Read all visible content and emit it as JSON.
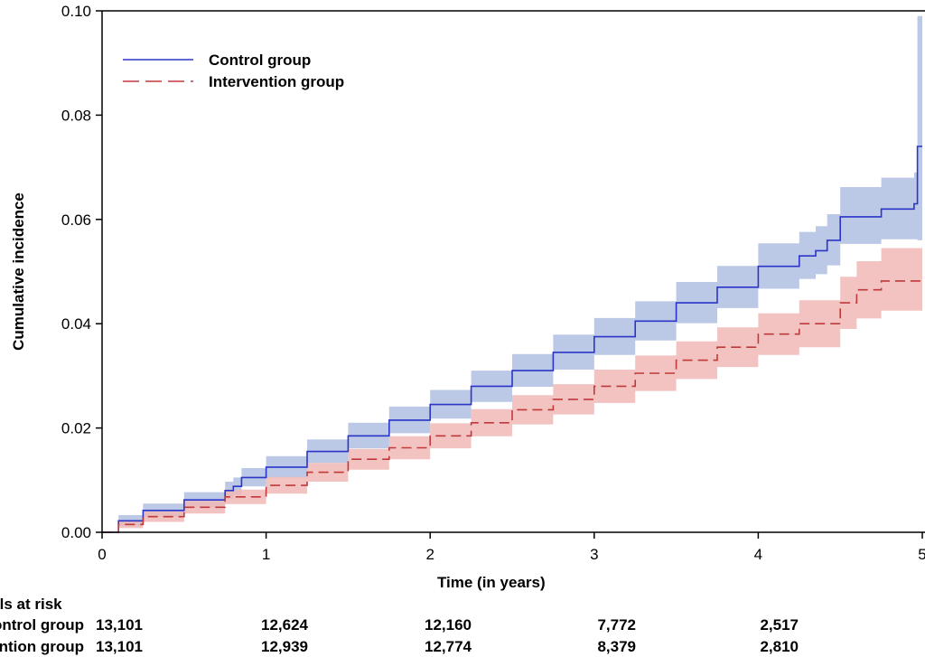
{
  "chart_data": {
    "type": "line",
    "xlabel": "Time (in years)",
    "ylabel": "Cumulative incidence",
    "xlim": [
      0,
      5
    ],
    "ylim": [
      0,
      0.1
    ],
    "x_ticks": [
      "0",
      "1",
      "2",
      "3",
      "4",
      "5"
    ],
    "y_ticks": [
      "0.00",
      "0.02",
      "0.04",
      "0.06",
      "0.08",
      "0.10"
    ],
    "legend_position": "top-left",
    "series": [
      {
        "name": "Control group",
        "color": "#2b35c8",
        "band_color": "#b4c2e3",
        "line_style": "solid",
        "x": [
          0,
          0.1,
          0.25,
          0.5,
          0.75,
          0.8,
          0.85,
          1.0,
          1.25,
          1.5,
          1.75,
          2.0,
          2.25,
          2.5,
          2.75,
          3.0,
          3.25,
          3.5,
          3.75,
          4.0,
          4.25,
          4.35,
          4.42,
          4.5,
          4.75,
          4.95,
          4.97,
          5.0
        ],
        "values": [
          0,
          0.0022,
          0.0042,
          0.0062,
          0.008,
          0.0088,
          0.0105,
          0.0125,
          0.0155,
          0.0185,
          0.0215,
          0.0245,
          0.028,
          0.031,
          0.0345,
          0.0375,
          0.0405,
          0.044,
          0.047,
          0.051,
          0.053,
          0.054,
          0.056,
          0.0605,
          0.062,
          0.063,
          0.074,
          0.074
        ],
        "lower": [
          0,
          0.0012,
          0.003,
          0.0048,
          0.0064,
          0.0072,
          0.0088,
          0.0105,
          0.0133,
          0.0161,
          0.019,
          0.0218,
          0.025,
          0.0279,
          0.0312,
          0.034,
          0.0368,
          0.0401,
          0.043,
          0.0467,
          0.0486,
          0.0495,
          0.0512,
          0.0553,
          0.0562,
          0.0562,
          0.056,
          0.056
        ],
        "upper": [
          0,
          0.0033,
          0.0055,
          0.0077,
          0.0097,
          0.0105,
          0.0123,
          0.0146,
          0.0178,
          0.021,
          0.0241,
          0.0273,
          0.031,
          0.0342,
          0.0379,
          0.0411,
          0.0443,
          0.048,
          0.0511,
          0.0554,
          0.0576,
          0.0587,
          0.061,
          0.0662,
          0.068,
          0.069,
          0.099,
          0.099
        ]
      },
      {
        "name": "Intervention group",
        "color": "#c0393b",
        "band_color": "#f0b8b5",
        "line_style": "dashed",
        "x": [
          0,
          0.1,
          0.25,
          0.5,
          0.75,
          1.0,
          1.25,
          1.5,
          1.75,
          2.0,
          2.25,
          2.5,
          2.75,
          3.0,
          3.25,
          3.5,
          3.75,
          4.0,
          4.25,
          4.5,
          4.6,
          4.75,
          5.0
        ],
        "values": [
          0,
          0.0015,
          0.003,
          0.0048,
          0.0068,
          0.009,
          0.0115,
          0.014,
          0.0162,
          0.0185,
          0.021,
          0.0235,
          0.0255,
          0.028,
          0.0305,
          0.033,
          0.0355,
          0.038,
          0.04,
          0.044,
          0.0465,
          0.0482,
          0.0482
        ],
        "lower": [
          0,
          0.0008,
          0.002,
          0.0036,
          0.0054,
          0.0074,
          0.0097,
          0.012,
          0.014,
          0.0161,
          0.0184,
          0.0207,
          0.0226,
          0.0248,
          0.0271,
          0.0294,
          0.0317,
          0.034,
          0.0355,
          0.039,
          0.041,
          0.0425,
          0.0425
        ],
        "upper": [
          0,
          0.0022,
          0.004,
          0.006,
          0.0082,
          0.0106,
          0.0133,
          0.016,
          0.0184,
          0.0209,
          0.0236,
          0.0263,
          0.0284,
          0.0312,
          0.0339,
          0.0366,
          0.0393,
          0.042,
          0.0445,
          0.049,
          0.052,
          0.0545,
          0.0545
        ]
      }
    ],
    "at_risk": {
      "title": "Individuals at risk",
      "rows": [
        {
          "label": "Control group",
          "values": [
            "13,101",
            "12,624",
            "12,160",
            "7,772",
            "2,517"
          ]
        },
        {
          "label": "Intervention group",
          "values": [
            "13,101",
            "12,939",
            "12,774",
            "8,379",
            "2,810"
          ]
        }
      ]
    }
  }
}
